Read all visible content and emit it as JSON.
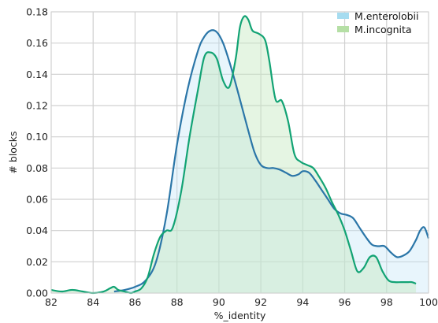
{
  "chart_data": {
    "type": "area",
    "xlabel": "%_identity",
    "ylabel": "# blocks",
    "xlim": [
      82,
      100
    ],
    "ylim": [
      0,
      0.18
    ],
    "x_ticks": [
      "82",
      "84",
      "86",
      "88",
      "90",
      "92",
      "94",
      "96",
      "98",
      "100"
    ],
    "y_ticks": [
      "0.00",
      "0.02",
      "0.04",
      "0.06",
      "0.08",
      "0.10",
      "0.12",
      "0.14",
      "0.16",
      "0.18"
    ],
    "grid": true,
    "legend_position": "top-right",
    "series": [
      {
        "name": "M.enterolobii",
        "line_color": "#2b76a8",
        "fill_color": "#bde3f5",
        "x": [
          85.0,
          85.5,
          86.0,
          86.5,
          87.0,
          87.5,
          88.0,
          88.5,
          89.0,
          89.3,
          89.6,
          89.9,
          90.2,
          90.5,
          90.8,
          91.1,
          91.4,
          91.7,
          92.0,
          92.3,
          92.6,
          92.9,
          93.2,
          93.5,
          93.8,
          94.0,
          94.3,
          94.6,
          94.9,
          95.2,
          95.5,
          95.8,
          96.1,
          96.4,
          96.7,
          97.0,
          97.3,
          97.6,
          97.9,
          98.2,
          98.5,
          98.8,
          99.1,
          99.4,
          99.6,
          99.8,
          100.0
        ],
        "y": [
          0.001,
          0.002,
          0.004,
          0.008,
          0.02,
          0.05,
          0.095,
          0.13,
          0.155,
          0.164,
          0.168,
          0.167,
          0.16,
          0.148,
          0.134,
          0.119,
          0.104,
          0.09,
          0.082,
          0.08,
          0.08,
          0.079,
          0.077,
          0.075,
          0.076,
          0.078,
          0.077,
          0.072,
          0.066,
          0.06,
          0.054,
          0.051,
          0.05,
          0.048,
          0.042,
          0.036,
          0.031,
          0.03,
          0.03,
          0.026,
          0.023,
          0.024,
          0.027,
          0.034,
          0.04,
          0.042,
          0.035
        ]
      },
      {
        "name": "M.incognita",
        "line_color": "#12a374",
        "fill_color": "#c6e8c0",
        "x": [
          82.0,
          82.5,
          83.0,
          83.5,
          84.0,
          84.5,
          84.8,
          85.0,
          85.2,
          85.5,
          85.8,
          86.0,
          86.3,
          86.6,
          86.9,
          87.2,
          87.5,
          87.8,
          88.2,
          88.6,
          89.0,
          89.3,
          89.6,
          89.9,
          90.2,
          90.5,
          90.8,
          91.0,
          91.2,
          91.4,
          91.6,
          91.9,
          92.2,
          92.4,
          92.7,
          93.0,
          93.3,
          93.6,
          93.9,
          94.2,
          94.5,
          94.8,
          95.1,
          95.4,
          95.7,
          96.0,
          96.3,
          96.6,
          96.9,
          97.2,
          97.5,
          97.8,
          98.1,
          98.4,
          98.7,
          99.0,
          99.2,
          99.4
        ],
        "y": [
          0.002,
          0.001,
          0.002,
          0.001,
          0.0,
          0.001,
          0.003,
          0.004,
          0.002,
          0.001,
          0.0,
          0.001,
          0.003,
          0.01,
          0.025,
          0.036,
          0.04,
          0.042,
          0.065,
          0.1,
          0.13,
          0.151,
          0.154,
          0.15,
          0.136,
          0.132,
          0.15,
          0.17,
          0.177,
          0.175,
          0.168,
          0.166,
          0.162,
          0.149,
          0.124,
          0.123,
          0.11,
          0.089,
          0.084,
          0.082,
          0.08,
          0.074,
          0.067,
          0.058,
          0.05,
          0.04,
          0.027,
          0.014,
          0.016,
          0.023,
          0.023,
          0.014,
          0.008,
          0.007,
          0.007,
          0.007,
          0.007,
          0.006
        ]
      }
    ]
  }
}
